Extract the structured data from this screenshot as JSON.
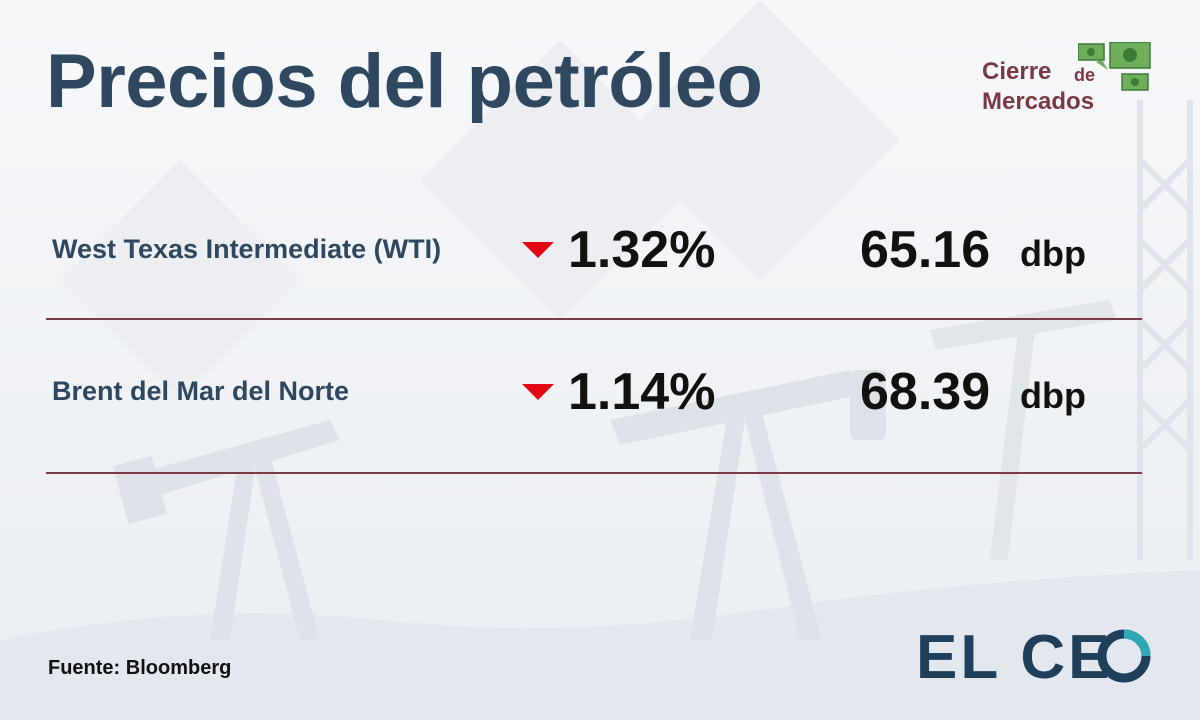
{
  "title": "Precios del petróleo",
  "brand": {
    "line1": "Cierre",
    "line1_small": "de",
    "line2": "Mercados",
    "icon": "money-bills-icon",
    "color": "#7a3a44"
  },
  "rows": [
    {
      "name": "West Texas Intermediate (WTI)",
      "direction": "down",
      "change": "1.32%",
      "price": "65.16",
      "unit": "dbp"
    },
    {
      "name": "Brent del Mar del Norte",
      "direction": "down",
      "change": "1.14%",
      "price": "68.39",
      "unit": "dbp"
    }
  ],
  "source": "Fuente: Bloomberg",
  "logo": {
    "text_el": "EL C",
    "text_e": "E",
    "icon": "logo-o-ring-icon",
    "color": "#1f3f5b",
    "accent": "#2fa7b5"
  },
  "colors": {
    "title": "#2f475f",
    "down_arrow": "#e30613",
    "divider": "#7a3a44"
  }
}
